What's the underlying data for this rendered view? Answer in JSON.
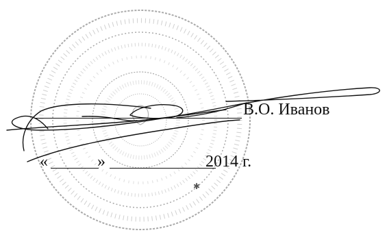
{
  "signatory": {
    "name": "В.О. Иванов"
  },
  "date_line": {
    "open_quote": "«",
    "close_quote": "»",
    "year": "2014 г."
  },
  "stamp": {
    "shape": "round-seal",
    "ink_color": "#9a9a9a",
    "text_legible": false
  },
  "signature": {
    "type": "handwritten",
    "ink_color": "#111111"
  }
}
